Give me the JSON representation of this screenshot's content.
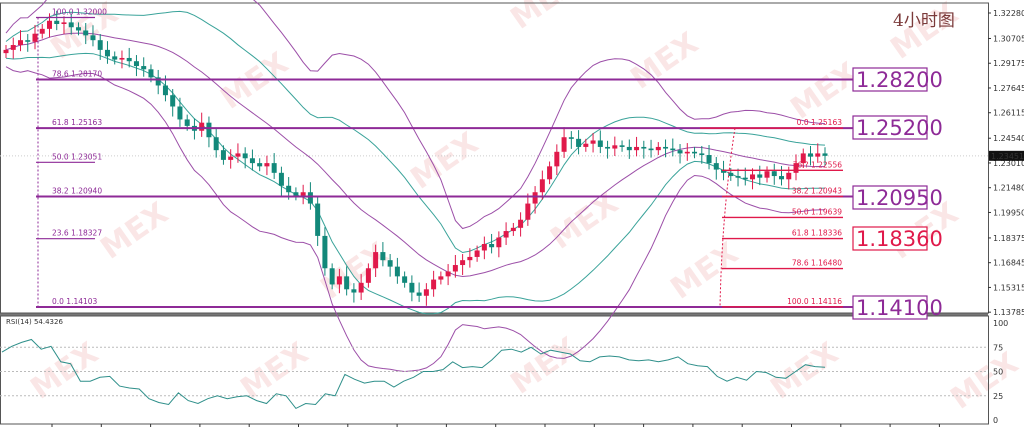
{
  "title": "4小时图",
  "watermark": "MEX",
  "colors": {
    "bull": "#e0194a",
    "bear": "#12887a",
    "band": "#9c4fa8",
    "mid": "#3aa39a",
    "fibLeft": "#8e2a97",
    "fibRight": "#e0194a",
    "rsi": "#2e8f8a",
    "priceTag": "#111111"
  },
  "chart_data": [
    {
      "type": "candlestick",
      "panel": "main",
      "ylim": [
        1.137,
        1.325
      ],
      "y_ticks": [
        "1.32280",
        "1.30705",
        "1.29175",
        "1.27645",
        "1.26115",
        "1.24540",
        "1.23010",
        "1.21480",
        "1.19950",
        "1.18375",
        "1.16845",
        "1.15315",
        "1.13785"
      ],
      "current_price": "1.23451",
      "closes": [
        1.3,
        1.303,
        1.306,
        1.305,
        1.31,
        1.313,
        1.318,
        1.316,
        1.317,
        1.314,
        1.312,
        1.309,
        1.306,
        1.3,
        1.296,
        1.294,
        1.295,
        1.293,
        1.29,
        1.288,
        1.283,
        1.278,
        1.272,
        1.265,
        1.257,
        1.253,
        1.25,
        1.255,
        1.246,
        1.238,
        1.232,
        1.234,
        1.236,
        1.233,
        1.23,
        1.228,
        1.23,
        1.224,
        1.216,
        1.212,
        1.21,
        1.212,
        1.205,
        1.185,
        1.165,
        1.155,
        1.16,
        1.152,
        1.15,
        1.156,
        1.165,
        1.175,
        1.17,
        1.166,
        1.16,
        1.156,
        1.15,
        1.148,
        1.152,
        1.158,
        1.16,
        1.163,
        1.167,
        1.17,
        1.172,
        1.176,
        1.18,
        1.178,
        1.184,
        1.188,
        1.19,
        1.195,
        1.205,
        1.212,
        1.22,
        1.228,
        1.237,
        1.246,
        1.245,
        1.24,
        1.242,
        1.244,
        1.24,
        1.239,
        1.241,
        1.24,
        1.238,
        1.24,
        1.239,
        1.238,
        1.24,
        1.239,
        1.238,
        1.236,
        1.237,
        1.236,
        1.235,
        1.23,
        1.226,
        1.224,
        1.222,
        1.221,
        1.22,
        1.223,
        1.221,
        1.225,
        1.222,
        1.22,
        1.224,
        1.23,
        1.236,
        1.234,
        1.236,
        1.2345
      ],
      "fib_left": [
        {
          "level": "100.0",
          "price": "1.32000",
          "extent": "short"
        },
        {
          "level": "78.6",
          "price": "1.28170",
          "extent": "long"
        },
        {
          "level": "61.8",
          "price": "1.25163",
          "extent": "long"
        },
        {
          "level": "50.0",
          "price": "1.23051",
          "extent": "short"
        },
        {
          "level": "38.2",
          "price": "1.20940",
          "extent": "long"
        },
        {
          "level": "23.6",
          "price": "1.18327",
          "extent": "short"
        },
        {
          "level": "0.0",
          "price": "1.14103",
          "extent": "long"
        }
      ],
      "fib_right": [
        {
          "level": "0.0",
          "price": "1.25163"
        },
        {
          "level": "76.?",
          "price": "1.22556"
        },
        {
          "level": "38.2",
          "price": "1.20943"
        },
        {
          "level": "50.0",
          "price": "1.19639"
        },
        {
          "level": "61.8",
          "price": "1.18336"
        },
        {
          "level": "78.6",
          "price": "1.16480"
        },
        {
          "level": "100.0",
          "price": "1.14116"
        }
      ],
      "key_levels": [
        {
          "label": "1.28200",
          "color": "#8e2a97"
        },
        {
          "label": "1.25200",
          "color": "#8e2a97"
        },
        {
          "label": "1.20950",
          "color": "#8e2a97"
        },
        {
          "label": "1.18360",
          "color": "#e0194a"
        },
        {
          "label": "1.14100",
          "color": "#8e2a97"
        }
      ]
    },
    {
      "type": "line",
      "panel": "rsi",
      "label": "RSI(14) 54.4326",
      "ylim": [
        0,
        100
      ],
      "y_ticks": [
        "100",
        "75",
        "50",
        "25",
        "0"
      ],
      "grid_levels": [
        75,
        50,
        25
      ],
      "values": [
        70,
        76,
        80,
        83,
        73,
        76,
        60,
        58,
        40,
        40,
        44,
        45,
        35,
        33,
        32,
        22,
        18,
        16,
        28,
        20,
        17,
        22,
        25,
        22,
        24,
        25,
        20,
        17,
        27,
        25,
        12,
        17,
        16,
        27,
        25,
        47,
        42,
        38,
        40,
        40,
        34,
        40,
        44,
        50,
        50,
        52,
        60,
        54,
        55,
        54,
        62,
        72,
        73,
        70,
        75,
        68,
        72,
        70,
        68,
        61,
        60,
        65,
        66,
        65,
        62,
        61,
        62,
        60,
        62,
        65,
        58,
        56,
        55,
        45,
        40,
        44,
        41,
        50,
        49,
        44,
        43,
        50,
        57,
        55,
        54.4
      ]
    }
  ]
}
